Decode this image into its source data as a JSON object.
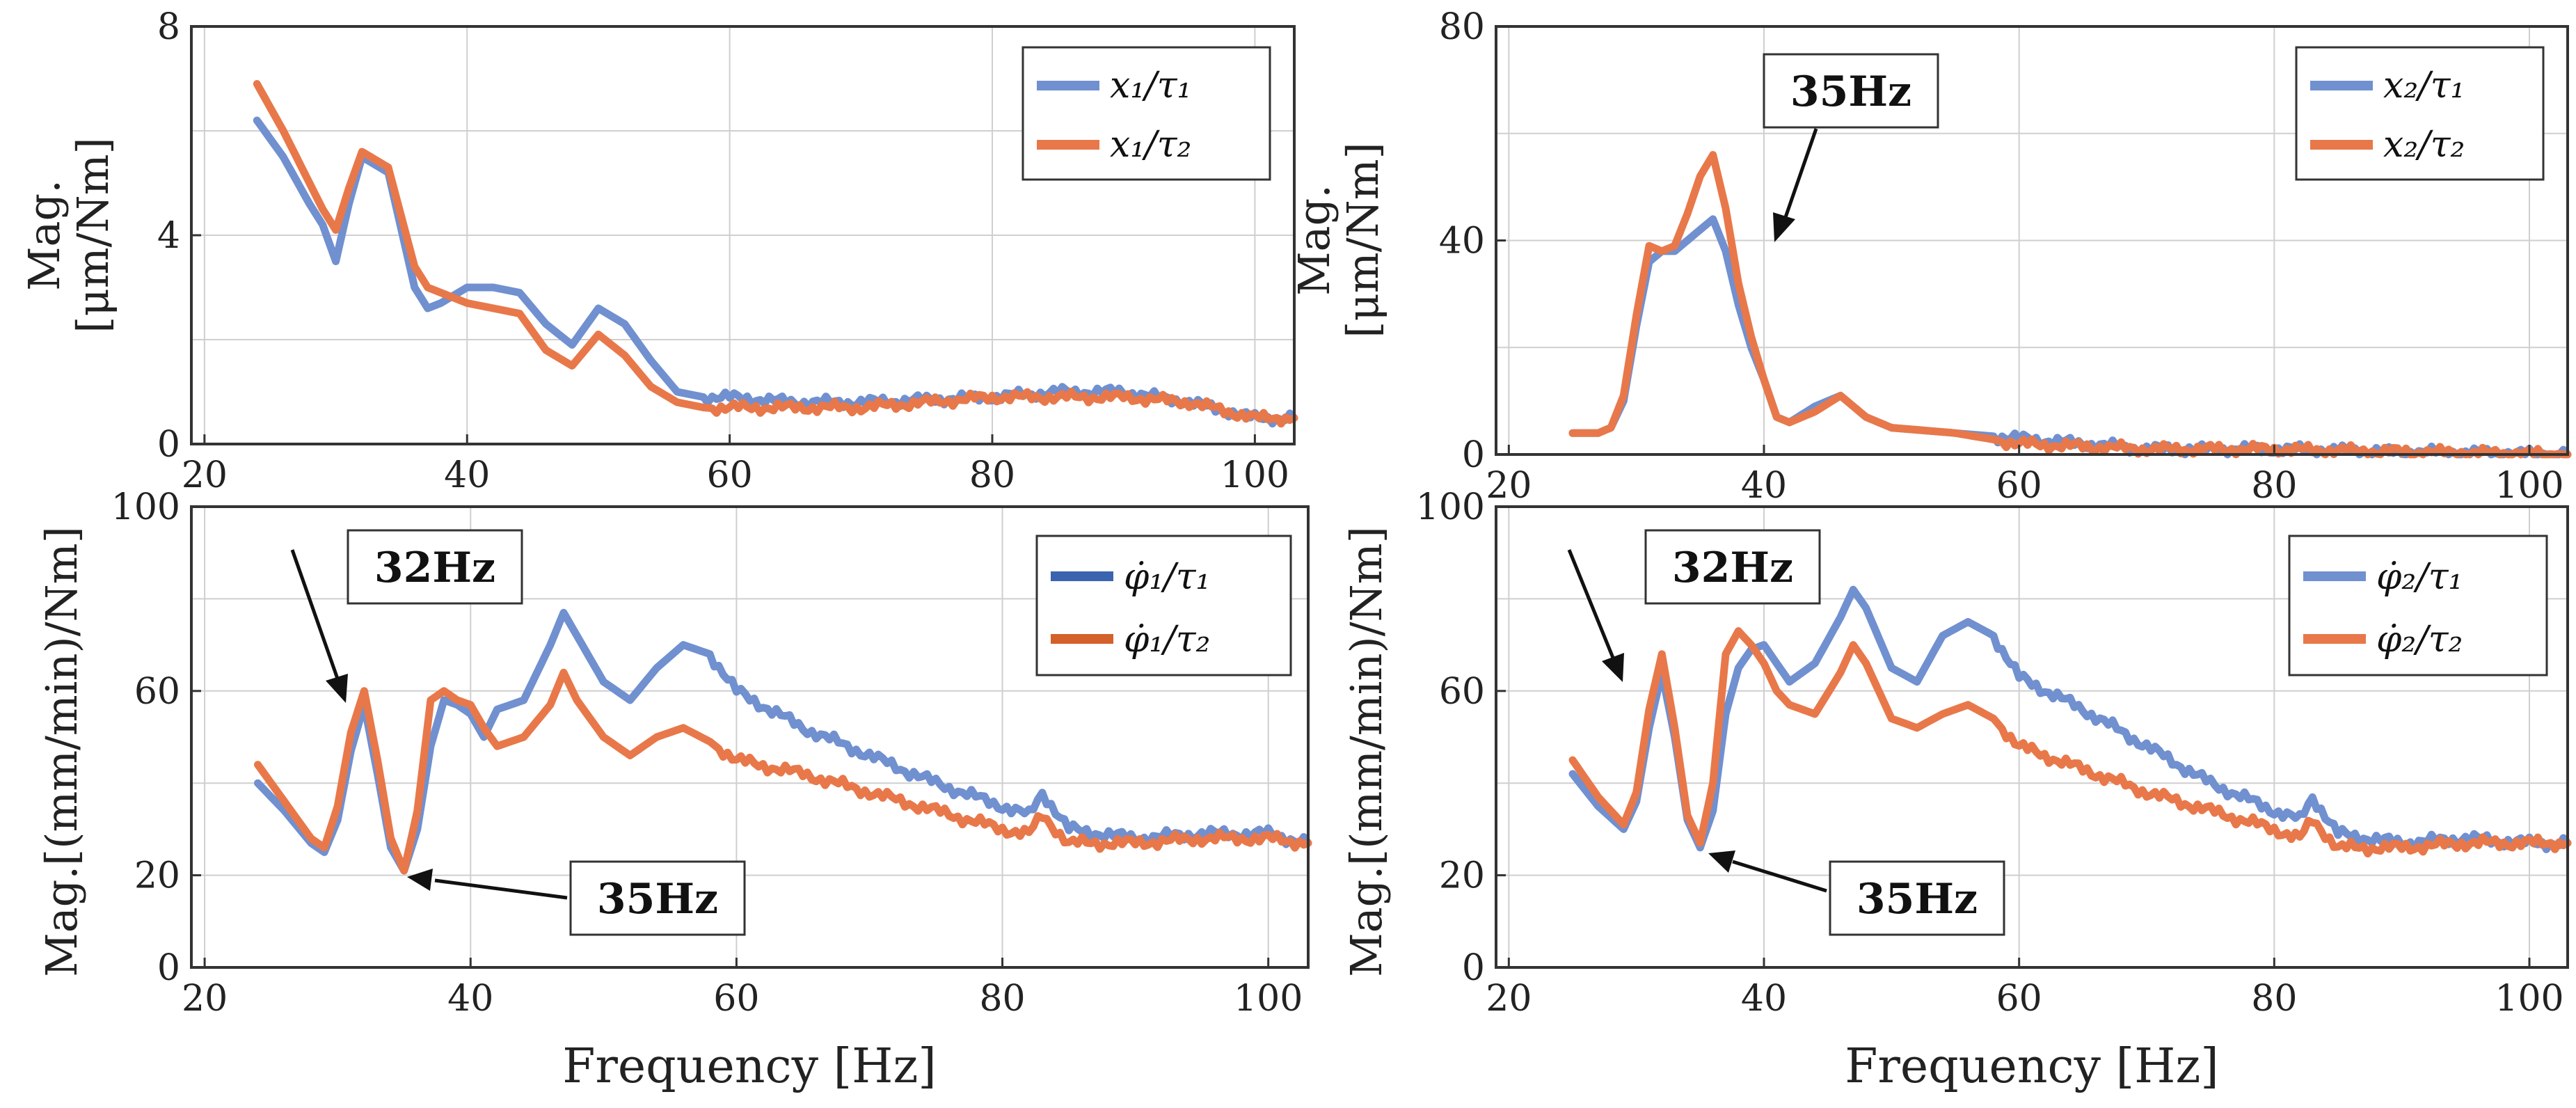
{
  "figure": {
    "x_axis_label": "Frequency [Hz]"
  },
  "chart_data": [
    {
      "id": "p1",
      "type": "line",
      "xlim": [
        19,
        103
      ],
      "ylim": [
        0,
        8
      ],
      "xticks": [
        20,
        40,
        60,
        80,
        100
      ],
      "yticks": [
        0,
        4,
        8
      ],
      "ylabel_lines": [
        "Mag.",
        "[μm/Nm]"
      ],
      "xlabel": "",
      "grid": true,
      "legend_position": "top-right",
      "series": [
        {
          "name": "x₁/τ₁",
          "color": "#7090d0",
          "x": [
            24,
            26,
            28,
            29,
            30,
            31,
            32,
            34,
            36,
            37,
            38,
            40,
            42,
            44,
            46,
            48,
            50,
            52,
            54,
            56,
            58,
            60,
            65,
            70,
            80,
            85,
            90,
            95,
            100,
            103
          ],
          "y": [
            6.2,
            5.5,
            4.6,
            4.2,
            3.5,
            4.6,
            5.5,
            5.2,
            3.0,
            2.6,
            2.7,
            3.0,
            3.0,
            2.9,
            2.3,
            1.9,
            2.6,
            2.3,
            1.6,
            1.0,
            0.9,
            0.9,
            0.8,
            0.8,
            0.9,
            1.0,
            1.0,
            0.8,
            0.5,
            0.5
          ]
        },
        {
          "name": "x₁/τ₂",
          "color": "#e8784a",
          "x": [
            24,
            26,
            28,
            29,
            30,
            31,
            32,
            34,
            36,
            37,
            38,
            40,
            42,
            44,
            46,
            48,
            50,
            52,
            54,
            56,
            58,
            60,
            65,
            70,
            80,
            85,
            90,
            95,
            100,
            103
          ],
          "y": [
            6.9,
            6.0,
            5.0,
            4.5,
            4.1,
            4.9,
            5.6,
            5.3,
            3.4,
            3.0,
            2.9,
            2.7,
            2.6,
            2.5,
            1.8,
            1.5,
            2.1,
            1.7,
            1.1,
            0.8,
            0.7,
            0.7,
            0.7,
            0.7,
            0.9,
            0.9,
            0.9,
            0.8,
            0.5,
            0.5
          ]
        }
      ],
      "annotations": []
    },
    {
      "id": "p2",
      "type": "line",
      "xlim": [
        19,
        103
      ],
      "ylim": [
        0,
        80
      ],
      "xticks": [
        20,
        40,
        60,
        80,
        100
      ],
      "yticks": [
        0,
        40,
        80
      ],
      "ylabel_lines": [
        "Mag.",
        "[μm/Nm]"
      ],
      "xlabel": "",
      "grid": true,
      "legend_position": "top-right",
      "series": [
        {
          "name": "x₂/τ₁",
          "color": "#7090d0",
          "x": [
            25,
            27,
            28,
            29,
            30,
            31,
            32,
            33,
            34,
            35,
            36,
            37,
            38,
            39,
            40,
            41,
            42,
            44,
            46,
            48,
            50,
            55,
            60,
            70,
            80,
            90,
            103
          ],
          "y": [
            4,
            4,
            5,
            10,
            24,
            36,
            38,
            38,
            40,
            42,
            44,
            38,
            28,
            20,
            14,
            7,
            6,
            9,
            11,
            7,
            5,
            4,
            3,
            1,
            1,
            0.5,
            0
          ]
        },
        {
          "name": "x₂/τ₂",
          "color": "#e8784a",
          "x": [
            25,
            27,
            28,
            29,
            30,
            31,
            32,
            33,
            34,
            35,
            36,
            37,
            38,
            39,
            40,
            41,
            42,
            44,
            46,
            48,
            50,
            55,
            60,
            70,
            80,
            90,
            103
          ],
          "y": [
            4,
            4,
            5,
            11,
            26,
            39,
            38,
            39,
            45,
            52,
            56,
            46,
            32,
            22,
            14,
            7,
            6,
            8,
            11,
            7,
            5,
            4,
            2,
            1,
            1,
            0.5,
            0
          ]
        }
      ],
      "annotations": [
        {
          "text": "35Hz",
          "x": 35,
          "y": 46
        }
      ]
    },
    {
      "id": "p3",
      "type": "line",
      "xlim": [
        19,
        103
      ],
      "ylim": [
        0,
        100
      ],
      "xticks": [
        20,
        40,
        60,
        80,
        100
      ],
      "yticks": [
        0,
        20,
        60,
        100
      ],
      "ylabel_lines": [
        "Mag.[(mm/min)/Nm]"
      ],
      "xlabel": "Frequency [Hz]",
      "grid": true,
      "legend_position": "top-right",
      "series": [
        {
          "name": "φ̇₁/τ₁",
          "color": "#7090d0",
          "x": [
            24,
            26,
            28,
            29,
            30,
            31,
            32,
            33,
            34,
            35,
            36,
            37,
            38,
            39,
            40,
            41,
            42,
            44,
            46,
            47,
            48,
            50,
            52,
            54,
            56,
            58,
            60,
            65,
            70,
            75,
            80,
            82,
            83,
            85,
            90,
            95,
            100,
            103
          ],
          "y": [
            40,
            34,
            27,
            25,
            32,
            47,
            57,
            42,
            26,
            21,
            30,
            48,
            58,
            57,
            55,
            50,
            56,
            58,
            70,
            77,
            72,
            62,
            58,
            65,
            70,
            68,
            60,
            52,
            46,
            40,
            35,
            33,
            38,
            30,
            28,
            29,
            29,
            27
          ]
        },
        {
          "name": "φ̇₁/τ₂",
          "color": "#e8784a",
          "x": [
            24,
            26,
            28,
            29,
            30,
            31,
            32,
            33,
            34,
            35,
            36,
            37,
            38,
            39,
            40,
            41,
            42,
            44,
            46,
            47,
            48,
            50,
            52,
            54,
            56,
            58,
            60,
            65,
            70,
            75,
            80,
            82,
            83,
            85,
            90,
            95,
            100,
            103
          ],
          "y": [
            44,
            36,
            28,
            26,
            35,
            51,
            60,
            45,
            28,
            21,
            34,
            58,
            60,
            58,
            57,
            52,
            48,
            50,
            57,
            64,
            58,
            50,
            46,
            50,
            52,
            49,
            45,
            42,
            38,
            34,
            30,
            29,
            33,
            27,
            27,
            28,
            28,
            27
          ]
        }
      ],
      "annotations": [
        {
          "text": "32Hz",
          "x": 32,
          "y": 60
        },
        {
          "text": "35Hz",
          "x": 35,
          "y": 21
        }
      ]
    },
    {
      "id": "p4",
      "type": "line",
      "xlim": [
        19,
        103
      ],
      "ylim": [
        0,
        100
      ],
      "xticks": [
        20,
        40,
        60,
        80,
        100
      ],
      "yticks": [
        0,
        20,
        60,
        100
      ],
      "ylabel_lines": [
        "Mag.[(mm/min)/Nm]"
      ],
      "xlabel": "Frequency [Hz]",
      "grid": true,
      "legend_position": "top-right",
      "series": [
        {
          "name": "φ̇₂/τ₁",
          "color": "#7090d0",
          "x": [
            25,
            27,
            29,
            30,
            31,
            32,
            33,
            34,
            35,
            36,
            37,
            38,
            39,
            40,
            41,
            42,
            44,
            46,
            47,
            48,
            50,
            52,
            54,
            56,
            58,
            60,
            65,
            70,
            75,
            80,
            82,
            83,
            85,
            90,
            95,
            100,
            103
          ],
          "y": [
            42,
            35,
            30,
            36,
            52,
            64,
            50,
            32,
            26,
            34,
            55,
            65,
            69,
            70,
            66,
            62,
            66,
            76,
            82,
            78,
            65,
            62,
            72,
            75,
            72,
            63,
            56,
            48,
            40,
            34,
            32,
            37,
            29,
            27,
            28,
            27,
            27
          ]
        },
        {
          "name": "φ̇₂/τ₂",
          "color": "#e8784a",
          "x": [
            25,
            27,
            29,
            30,
            31,
            32,
            33,
            34,
            35,
            36,
            37,
            38,
            39,
            40,
            41,
            42,
            44,
            46,
            47,
            48,
            50,
            52,
            54,
            56,
            58,
            60,
            65,
            70,
            75,
            80,
            82,
            83,
            85,
            90,
            95,
            100,
            103
          ],
          "y": [
            45,
            37,
            31,
            38,
            56,
            68,
            52,
            33,
            27,
            40,
            68,
            73,
            70,
            66,
            60,
            57,
            55,
            64,
            70,
            66,
            54,
            52,
            55,
            57,
            54,
            48,
            43,
            38,
            34,
            30,
            28,
            32,
            26,
            26,
            27,
            27,
            27
          ]
        }
      ],
      "annotations": [
        {
          "text": "32Hz",
          "x": 32,
          "y": 67
        },
        {
          "text": "35Hz",
          "x": 35,
          "y": 27
        }
      ]
    }
  ]
}
